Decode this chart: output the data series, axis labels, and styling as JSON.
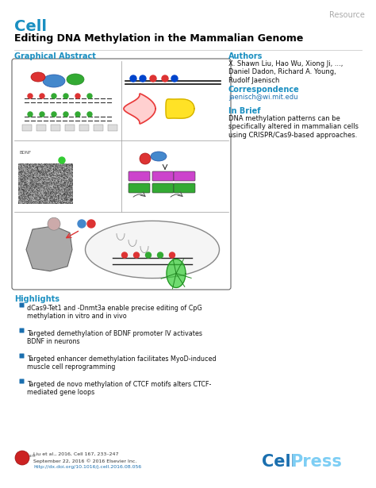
{
  "bg_color": "#ffffff",
  "resource_text": "Resource",
  "resource_color": "#aaaaaa",
  "cell_text": "Cell",
  "cell_color": "#1a8fc1",
  "title": "Editing DNA Methylation in the Mammalian Genome",
  "title_color": "#000000",
  "graphical_abstract_label": "Graphical Abstract",
  "section_color": "#1a8fc1",
  "authors_label": "Authors",
  "authors_text": "X. Shawn Liu, Hao Wu, Xiong Ji, ...,\nDaniel Dadon, Richard A. Young,\nRudolf Jaenisch",
  "correspondence_label": "Correspondence",
  "correspondence_text": "jaenisch@wi.mit.edu",
  "inbrief_label": "In Brief",
  "inbrief_text": "DNA methylation patterns can be\nspecifically altered in mammalian cells\nusing CRISPR/Cas9-based approaches.",
  "highlights_label": "Highlights",
  "highlights": [
    "dCas9-Tet1 and -Dnmt3a enable precise editing of CpG\nmethylation in vitro and in vivo",
    "Targeted demethylation of BDNF promoter IV activates\nBDNF in neurons",
    "Targeted enhancer demethylation facilitates MyoD-induced\nmuscle cell reprogramming",
    "Targeted de novo methylation of CTCF motifs alters CTCF-\nmediated gene loops"
  ],
  "footer_line1": "Liu et al., 2016, Cell 167, 233–247",
  "footer_line2": "September 22, 2016 © 2016 Elsevier Inc.",
  "footer_line3": "http://dx.doi.org/10.1016/j.cell.2016.08.056",
  "cellpress_cell_color": "#1a6faf",
  "cellpress_press_color": "#7ecef4"
}
